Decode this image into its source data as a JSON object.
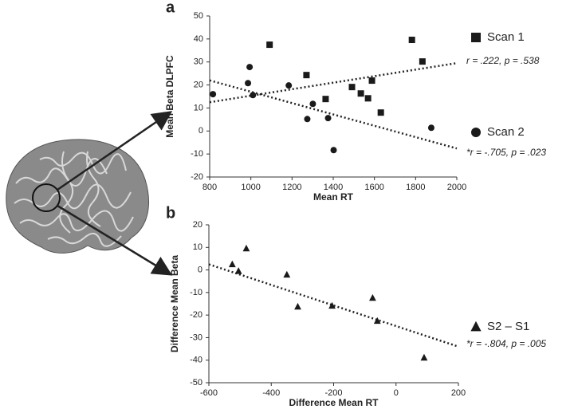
{
  "chart_data": [
    {
      "type": "scatter",
      "panel": "a",
      "xlabel": "Mean RT",
      "ylabel": "Mean Beta DLPFC",
      "xlim": [
        800,
        2000
      ],
      "xticks": [
        800,
        1000,
        1200,
        1400,
        1600,
        1800,
        2000
      ],
      "ylim": [
        -20,
        50
      ],
      "yticks": [
        -20,
        -10,
        0,
        10,
        20,
        30,
        40,
        50
      ],
      "series": [
        {
          "name": "Scan 1",
          "marker": "square",
          "color": "#1a1a1a",
          "x": [
            1091,
            1270,
            1363,
            1491,
            1569,
            1534,
            1588,
            1631,
            1782,
            1833
          ],
          "y": [
            37.5,
            24.3,
            13.9,
            19.1,
            14.2,
            16.3,
            21.9,
            8,
            39.6,
            30.2
          ],
          "trend_x": [
            800,
            2000
          ],
          "trend_y": [
            12.5,
            29.5
          ],
          "annotation": "r  =  .222, p = .538"
        },
        {
          "name": "Scan 2",
          "marker": "circle",
          "color": "#1a1a1a",
          "x": [
            816,
            986,
            994,
            1010,
            1184,
            1274,
            1301,
            1375,
            1402,
            1876
          ],
          "y": [
            16,
            20.8,
            27.8,
            15.6,
            19.8,
            5.2,
            11.8,
            5.6,
            -8.3,
            1.4
          ],
          "trend_x": [
            800,
            2000
          ],
          "trend_y": [
            22,
            -7.6
          ],
          "annotation": "*r  = -.705, p = .023"
        }
      ]
    },
    {
      "type": "scatter",
      "panel": "b",
      "xlabel": "Difference Mean RT",
      "ylabel": "Difference Mean Beta",
      "xlim": [
        -600,
        200
      ],
      "xticks": [
        -600,
        -400,
        -200,
        0,
        200
      ],
      "ylim": [
        -50,
        20
      ],
      "yticks": [
        -50,
        -40,
        -30,
        -20,
        -10,
        0,
        10,
        20
      ],
      "series": [
        {
          "name": "S2 – S1",
          "marker": "triangle",
          "color": "#1a1a1a",
          "x": [
            -525,
            -505,
            -480,
            -350,
            -315,
            -205,
            -75,
            -60,
            90
          ],
          "y": [
            2.5,
            -0.5,
            9.5,
            -2.1,
            -16.3,
            -15.9,
            -12.4,
            -22.6,
            -38.9
          ],
          "trend_x": [
            -600,
            200
          ],
          "trend_y": [
            2.5,
            -34
          ],
          "annotation": "*r  = -.804, p = .005"
        }
      ]
    }
  ]
}
